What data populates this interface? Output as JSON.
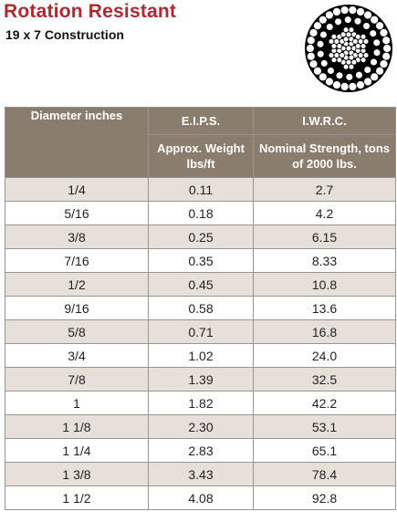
{
  "header": {
    "title": "Rotation Resistant",
    "subtitle": "19 x 7 Construction"
  },
  "colors": {
    "title": "#b3282e",
    "header_bg": "#8a7d6e",
    "row_shaded": "#e6e0d9",
    "row_plain": "#ffffff"
  },
  "icon": "wire-rope-cross-section-icon",
  "table": {
    "headers": {
      "diameter": "Diameter inches",
      "eips": "E.I.P.S.",
      "iwrc": "I.W.R.C.",
      "weight": "Approx. Weight lbs/ft",
      "strength": "Nominal Strength, tons of 2000 lbs."
    },
    "rows": [
      {
        "diameter": "1/4",
        "weight": "0.11",
        "strength": "2.7"
      },
      {
        "diameter": "5/16",
        "weight": "0.18",
        "strength": "4.2"
      },
      {
        "diameter": "3/8",
        "weight": "0.25",
        "strength": "6.15"
      },
      {
        "diameter": "7/16",
        "weight": "0.35",
        "strength": "8.33"
      },
      {
        "diameter": "1/2",
        "weight": "0.45",
        "strength": "10.8"
      },
      {
        "diameter": "9/16",
        "weight": "0.58",
        "strength": "13.6"
      },
      {
        "diameter": "5/8",
        "weight": "0.71",
        "strength": "16.8"
      },
      {
        "diameter": "3/4",
        "weight": "1.02",
        "strength": "24.0"
      },
      {
        "diameter": "7/8",
        "weight": "1.39",
        "strength": "32.5"
      },
      {
        "diameter": "1",
        "weight": "1.82",
        "strength": "42.2"
      },
      {
        "diameter": "1 1/8",
        "weight": "2.30",
        "strength": "53.1"
      },
      {
        "diameter": "1 1/4",
        "weight": "2.83",
        "strength": "65.1"
      },
      {
        "diameter": "1 3/8",
        "weight": "3.43",
        "strength": "78.4"
      },
      {
        "diameter": "1 1/2",
        "weight": "4.08",
        "strength": "92.8"
      }
    ]
  }
}
